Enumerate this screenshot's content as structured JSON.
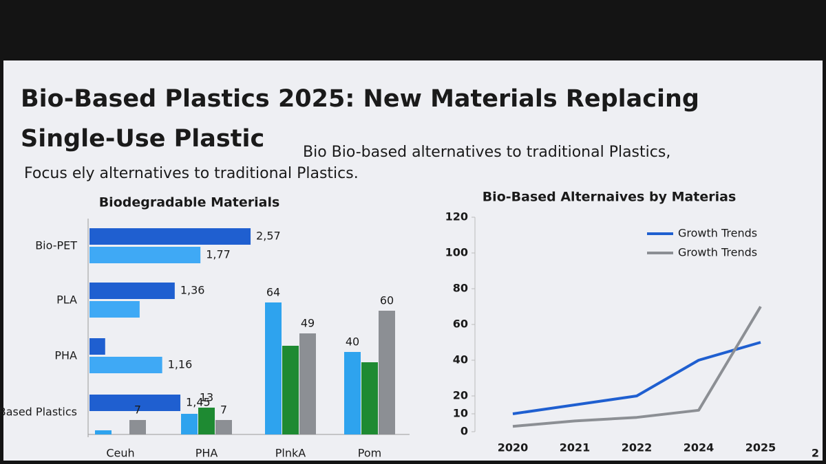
{
  "slide": {
    "title_line_1": "Bio-Based Plastics 2025: New Materials Replacing",
    "title_line_2": "Single-Use Plastic",
    "subtitle": "Bio Bio-based alternatives to traditional Plastics,",
    "subtitle_2": "Focus  ely alternatives to traditional Plastics.",
    "page_number": "2"
  },
  "chart_data": [
    {
      "type": "hbar",
      "title": "Biodegradable Materials",
      "categories": [
        "Bio-PET",
        "PLA",
        "PHA",
        "Starch-Based Plastics"
      ],
      "xlim": [
        0,
        2.8
      ],
      "series": [
        {
          "color": "#1f5fd0",
          "values": [
            2.57,
            1.36,
            0.25,
            1.45
          ],
          "value_labels": [
            "2,57",
            "1,36",
            null,
            "1,45"
          ]
        },
        {
          "color": "#3fa9f5",
          "values": [
            1.77,
            0.8,
            1.16,
            null
          ],
          "value_labels": [
            "1,77",
            null,
            "1,16",
            null
          ]
        }
      ]
    },
    {
      "type": "bar",
      "categories": [
        "Ceuh",
        "PHA",
        "PlnkA",
        "Pom"
      ],
      "ylim": [
        0,
        100
      ],
      "series": [
        {
          "color": "#2ea3ee",
          "values": [
            2,
            10,
            64,
            40
          ],
          "value_labels": [
            null,
            null,
            "64",
            "40"
          ]
        },
        {
          "color": "#1e8a32",
          "values": [
            null,
            13,
            43,
            35
          ],
          "value_labels": [
            null,
            "13",
            null,
            null
          ]
        },
        {
          "color": "#8c8f94",
          "values": [
            7,
            7,
            49,
            60
          ],
          "value_labels": [
            "7",
            "7",
            "49",
            "60"
          ]
        }
      ]
    },
    {
      "type": "line",
      "title": "Bio-Based Alternaives by Materias",
      "categories": [
        "2020",
        "2021",
        "2022",
        "2024",
        "2025"
      ],
      "ylim": [
        0,
        120
      ],
      "yticks": [
        0,
        10,
        20,
        40,
        60,
        80,
        100,
        120
      ],
      "legend": "top-right",
      "series": [
        {
          "name": "Growth Trends",
          "color": "#1f5fd0",
          "values": [
            10,
            15,
            20,
            40,
            50
          ]
        },
        {
          "name": "Growth Trends",
          "color": "#8c8f94",
          "values": [
            3,
            6,
            8,
            12,
            70
          ]
        }
      ]
    }
  ]
}
